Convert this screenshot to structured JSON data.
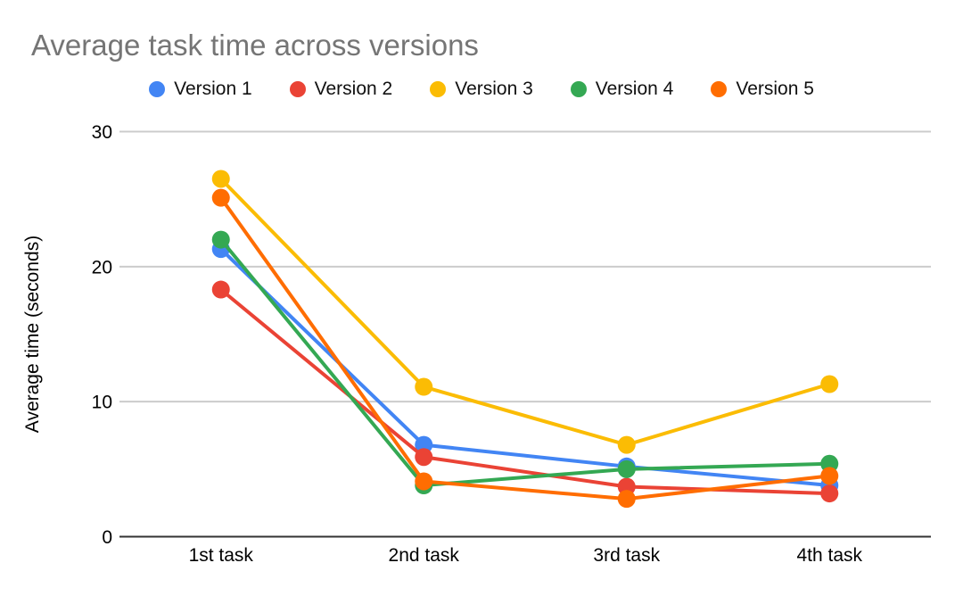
{
  "page": {
    "background": "#ffffff"
  },
  "chart_data": {
    "type": "line",
    "title": "Average task time across versions",
    "xlabel": "",
    "ylabel": "Average time (seconds)",
    "categories": [
      "1st task",
      "2nd task",
      "3rd task",
      "4th task"
    ],
    "series": [
      {
        "name": "Version 1",
        "color": "#4285F4",
        "values": [
          21.3,
          6.8,
          5.2,
          3.8
        ]
      },
      {
        "name": "Version 2",
        "color": "#EA4335",
        "values": [
          18.3,
          5.9,
          3.7,
          3.2
        ]
      },
      {
        "name": "Version 3",
        "color": "#FBBC04",
        "values": [
          26.5,
          11.1,
          6.8,
          11.3
        ]
      },
      {
        "name": "Version 4",
        "color": "#34A853",
        "values": [
          22.0,
          3.8,
          5.0,
          5.4
        ]
      },
      {
        "name": "Version 5",
        "color": "#FF6D01",
        "values": [
          25.1,
          4.1,
          2.8,
          4.5
        ]
      }
    ],
    "ylim": [
      0,
      30
    ],
    "yticks": [
      0,
      10,
      20,
      30
    ],
    "grid": true,
    "legend_position": "top",
    "marker": "circle"
  },
  "style": {
    "title_color": "#757575",
    "axis_text_color": "#000000",
    "gridline_color": "#cccccc",
    "baseline_color": "#333333",
    "line_width": 4,
    "marker_radius": 10
  }
}
